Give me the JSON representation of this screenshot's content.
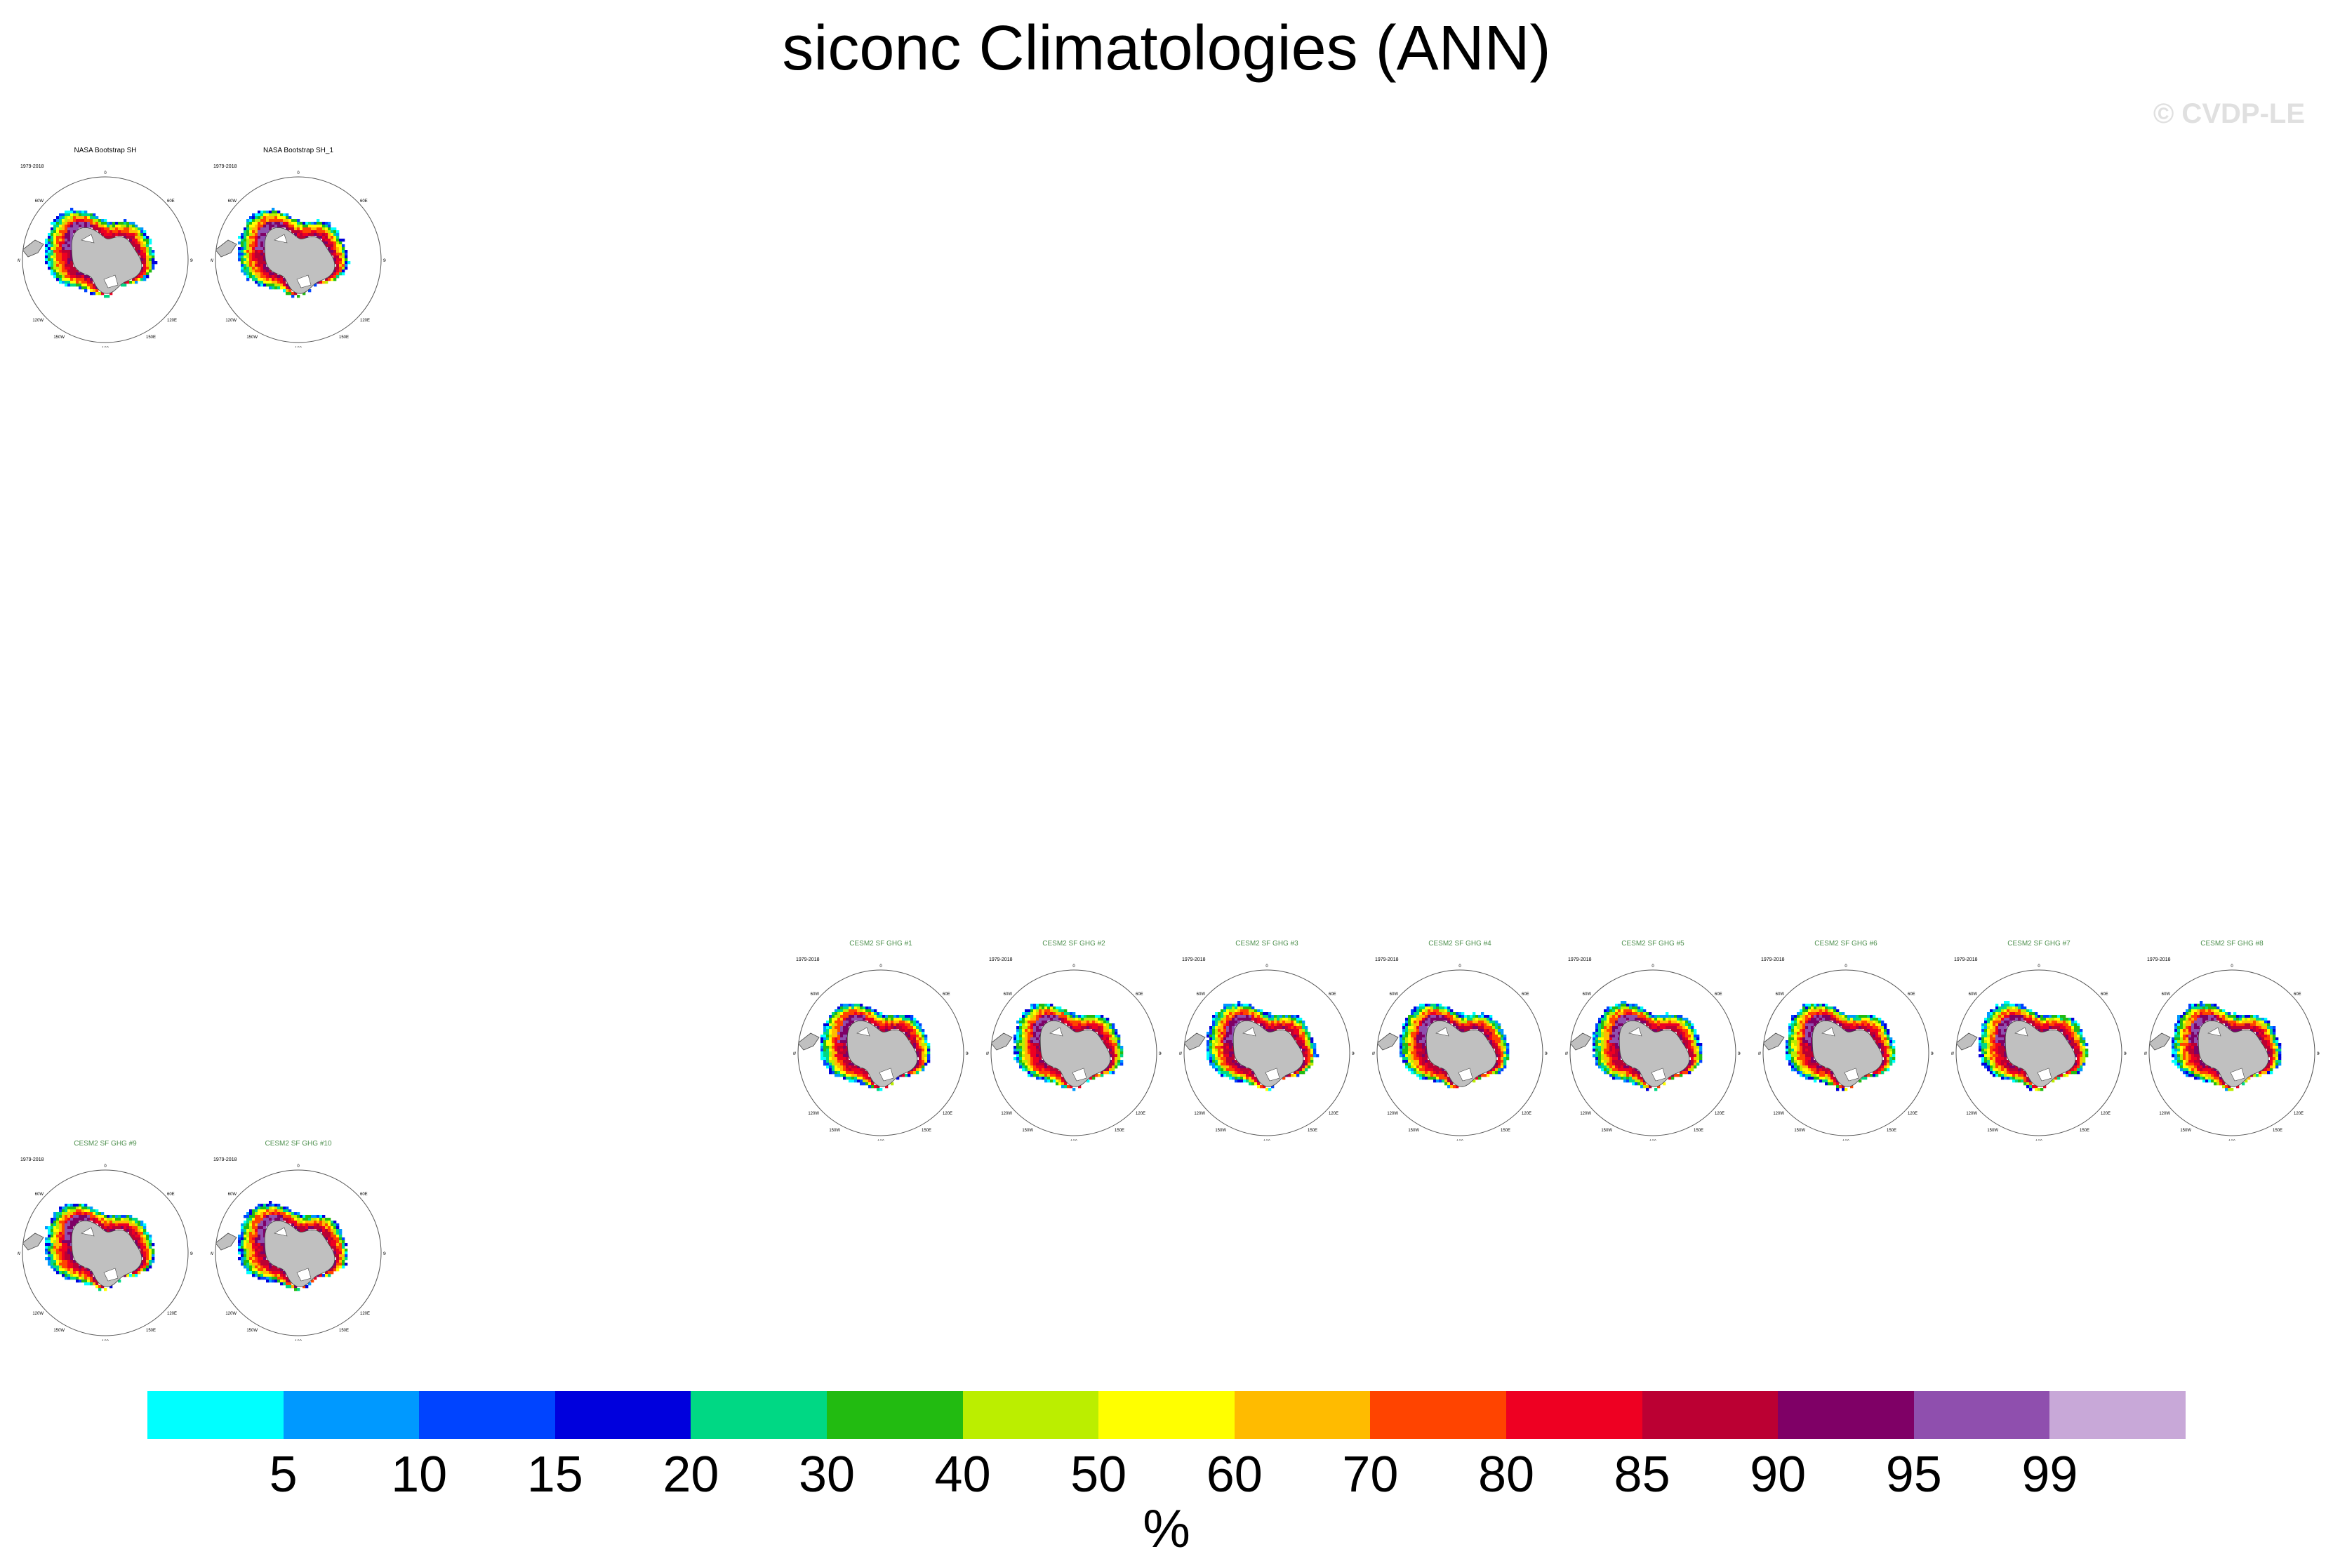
{
  "title": "siconc Climatologies (ANN)",
  "credit": "© CVDP-LE",
  "map": {
    "years": "1979-2018",
    "lon_labels": {
      "top": "0",
      "right": "90E",
      "bottom": "180",
      "left": "90W",
      "ur": "60E",
      "lr": "120E",
      "ll": "120W",
      "ul": "60W",
      "lll": "150W",
      "llr": "150E"
    },
    "title_colors": {
      "obs": "#000000",
      "model": "#4d8f4d"
    }
  },
  "panels": [
    {
      "id": "obs-1",
      "title": "NASA Bootstrap SH",
      "kind": "obs"
    },
    {
      "id": "obs-2",
      "title": "NASA Bootstrap SH_1",
      "kind": "obs"
    },
    {
      "id": "m1",
      "title": "CESM2 SF GHG #1",
      "kind": "model"
    },
    {
      "id": "m2",
      "title": "CESM2 SF GHG #2",
      "kind": "model"
    },
    {
      "id": "m3",
      "title": "CESM2 SF GHG #3",
      "kind": "model"
    },
    {
      "id": "m4",
      "title": "CESM2 SF GHG #4",
      "kind": "model"
    },
    {
      "id": "m5",
      "title": "CESM2 SF GHG #5",
      "kind": "model"
    },
    {
      "id": "m6",
      "title": "CESM2 SF GHG #6",
      "kind": "model"
    },
    {
      "id": "m7",
      "title": "CESM2 SF GHG #7",
      "kind": "model"
    },
    {
      "id": "m8",
      "title": "CESM2 SF GHG #8",
      "kind": "model"
    },
    {
      "id": "m9",
      "title": "CESM2 SF GHG #9",
      "kind": "model"
    },
    {
      "id": "m10",
      "title": "CESM2 SF GHG #10",
      "kind": "model"
    }
  ],
  "colorbar": {
    "colors": [
      "#00ffff",
      "#0099ff",
      "#0044ff",
      "#0000dd",
      "#00d884",
      "#22bb11",
      "#bbee00",
      "#ffff00",
      "#ffbb00",
      "#ff4400",
      "#ee0022",
      "#bb0033",
      "#7f0066",
      "#8f4fae",
      "#c8a8d8"
    ],
    "labels": [
      "5",
      "10",
      "15",
      "20",
      "30",
      "40",
      "50",
      "60",
      "70",
      "80",
      "85",
      "90",
      "95",
      "99"
    ],
    "units": "%"
  }
}
